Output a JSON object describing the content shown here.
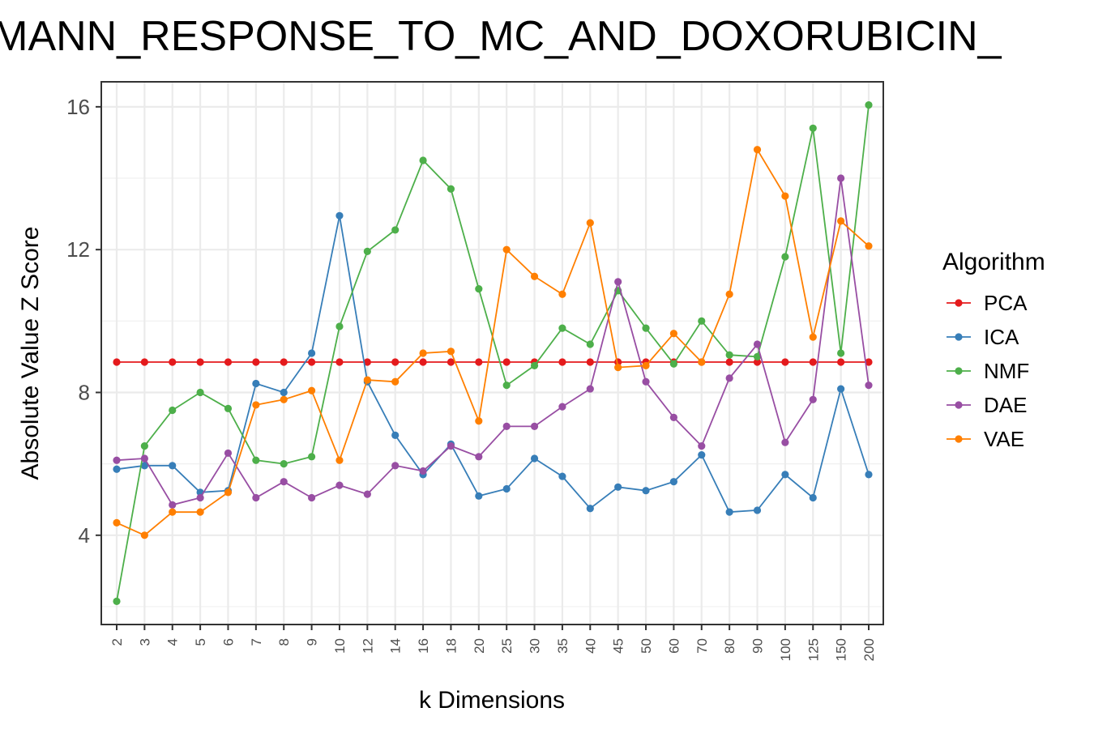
{
  "chart_data": {
    "type": "line",
    "title": "SMANN_RESPONSE_TO_MC_AND_DOXORUBICIN_",
    "xlabel": "k Dimensions",
    "ylabel": "Absolute Value Z Score",
    "ylim": [
      1.5,
      16.7
    ],
    "yticks": [
      "4",
      "8",
      "12",
      "16"
    ],
    "grid": true,
    "legend": {
      "title": "Algorithm",
      "position": "right"
    },
    "categories": [
      "2",
      "3",
      "4",
      "5",
      "6",
      "7",
      "8",
      "9",
      "10",
      "12",
      "14",
      "16",
      "18",
      "20",
      "25",
      "30",
      "35",
      "40",
      "45",
      "50",
      "60",
      "70",
      "80",
      "90",
      "100",
      "125",
      "150",
      "200"
    ],
    "series": [
      {
        "name": "PCA",
        "color": "#e41a1c",
        "values": [
          8.85,
          8.85,
          8.85,
          8.85,
          8.85,
          8.85,
          8.85,
          8.85,
          8.85,
          8.85,
          8.85,
          8.85,
          8.85,
          8.85,
          8.85,
          8.85,
          8.85,
          8.85,
          8.85,
          8.85,
          8.85,
          8.85,
          8.85,
          8.85,
          8.85,
          8.85,
          8.85,
          8.85
        ]
      },
      {
        "name": "ICA",
        "color": "#377eb8",
        "values": [
          5.85,
          5.95,
          5.95,
          5.2,
          5.25,
          8.25,
          8.0,
          9.1,
          12.95,
          8.3,
          6.8,
          5.7,
          6.55,
          5.1,
          5.3,
          6.15,
          5.65,
          4.75,
          5.35,
          5.25,
          5.5,
          6.25,
          4.65,
          4.7,
          5.7,
          5.05,
          8.1,
          5.7
        ]
      },
      {
        "name": "NMF",
        "color": "#4daf4a",
        "values": [
          2.15,
          6.5,
          7.5,
          8.0,
          7.55,
          6.1,
          6.0,
          6.2,
          9.85,
          11.95,
          12.55,
          14.5,
          13.7,
          10.9,
          8.2,
          8.75,
          9.8,
          9.35,
          10.85,
          9.8,
          8.8,
          10.0,
          9.05,
          9.0,
          11.8,
          15.4,
          9.1,
          16.05
        ]
      },
      {
        "name": "DAE",
        "color": "#984ea3",
        "values": [
          6.1,
          6.15,
          4.85,
          5.05,
          6.3,
          5.05,
          5.5,
          5.05,
          5.4,
          5.15,
          5.95,
          5.8,
          6.5,
          6.2,
          7.05,
          7.05,
          7.6,
          8.1,
          11.1,
          8.3,
          7.3,
          6.5,
          8.4,
          9.35,
          6.6,
          7.8,
          14.0,
          8.2
        ]
      },
      {
        "name": "VAE",
        "color": "#ff7f00",
        "values": [
          4.35,
          4.0,
          4.65,
          4.65,
          5.2,
          7.65,
          7.8,
          8.05,
          6.1,
          8.35,
          8.3,
          9.1,
          9.15,
          7.2,
          12.0,
          11.25,
          10.75,
          12.75,
          8.7,
          8.75,
          9.65,
          8.85,
          10.75,
          14.8,
          13.5,
          9.55,
          12.8,
          12.1
        ]
      }
    ]
  }
}
